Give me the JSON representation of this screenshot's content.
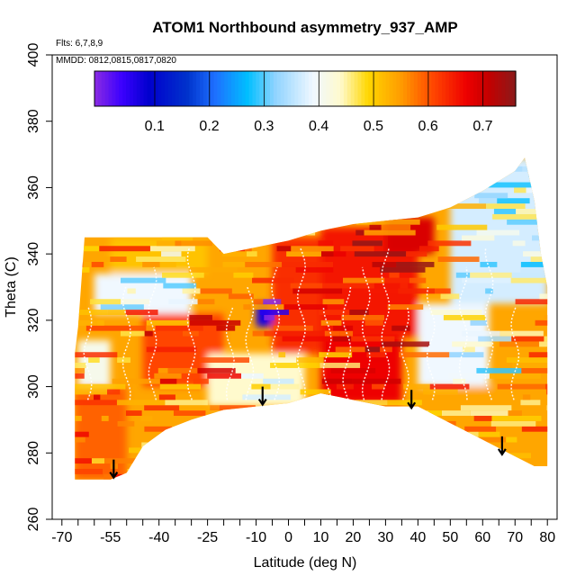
{
  "chart_data": {
    "type": "heatmap",
    "title": "ATOM1 Northbound asymmetry_937_AMP",
    "annotations": {
      "flights": "Flts: 6,7,8,9",
      "dates": "MMDD: 0812,0815,0817,0820"
    },
    "xlabel": "Latitude (deg N)",
    "ylabel": "Theta (C)",
    "xlim": [
      -70,
      80
    ],
    "ylim": [
      260,
      400
    ],
    "x_tick_labels": [
      "-70",
      "-55",
      "-40",
      "-25",
      "-10",
      "0",
      "10",
      "20",
      "30",
      "40",
      "50",
      "60",
      "70",
      "80"
    ],
    "x_tick_values": [
      -70,
      -55,
      -40,
      -25,
      -10,
      0,
      10,
      20,
      30,
      40,
      50,
      60,
      70,
      80
    ],
    "x_minor_ticks": [
      -65,
      -60,
      -50,
      -45,
      -35,
      -30,
      -20,
      -15,
      -5,
      5,
      15,
      25,
      35,
      45,
      55,
      65,
      75
    ],
    "y_tick_values": [
      260,
      280,
      300,
      320,
      340,
      360,
      380,
      400
    ],
    "y_tick_labels": [
      "260",
      "280",
      "300",
      "320",
      "340",
      "360",
      "380",
      "400"
    ],
    "colorbar": {
      "min": 0.0,
      "max": 0.77,
      "tick_values": [
        0.1,
        0.2,
        0.3,
        0.4,
        0.5,
        0.6,
        0.7
      ],
      "tick_labels": [
        "0.1",
        "0.2",
        "0.3",
        "0.4",
        "0.5",
        "0.6",
        "0.7"
      ],
      "dividers": [
        0.1,
        0.2,
        0.3,
        0.4,
        0.5,
        0.6,
        0.7
      ],
      "stops": [
        {
          "v": 0.0,
          "color": "#8a2be2"
        },
        {
          "v": 0.05,
          "color": "#3b00ff"
        },
        {
          "v": 0.1,
          "color": "#0000cd"
        },
        {
          "v": 0.17,
          "color": "#0033cc"
        },
        {
          "v": 0.22,
          "color": "#1e6fff"
        },
        {
          "v": 0.28,
          "color": "#00bfff"
        },
        {
          "v": 0.33,
          "color": "#8fd3ff"
        },
        {
          "v": 0.4,
          "color": "#f0f8ff"
        },
        {
          "v": 0.45,
          "color": "#fffacd"
        },
        {
          "v": 0.5,
          "color": "#ffd700"
        },
        {
          "v": 0.56,
          "color": "#ff9c00"
        },
        {
          "v": 0.62,
          "color": "#ff4500"
        },
        {
          "v": 0.68,
          "color": "#ee0000"
        },
        {
          "v": 0.72,
          "color": "#c40000"
        },
        {
          "v": 0.77,
          "color": "#8b1a1a"
        }
      ]
    },
    "field": {
      "lat_range": [
        -66,
        80
      ],
      "lower_boundary": [
        [
          -66,
          272
        ],
        [
          -55,
          272
        ],
        [
          -50,
          274
        ],
        [
          -45,
          282
        ],
        [
          -38,
          287
        ],
        [
          -30,
          290
        ],
        [
          -20,
          293
        ],
        [
          -10,
          294
        ],
        [
          0,
          295
        ],
        [
          10,
          298
        ],
        [
          20,
          296
        ],
        [
          30,
          294
        ],
        [
          40,
          294
        ],
        [
          50,
          289
        ],
        [
          60,
          284
        ],
        [
          70,
          279
        ],
        [
          76,
          276
        ],
        [
          80,
          276
        ]
      ],
      "upper_boundary": [
        [
          -66,
          310
        ],
        [
          -65,
          318
        ],
        [
          -63,
          345
        ],
        [
          -40,
          345
        ],
        [
          -25,
          345
        ],
        [
          -20,
          340
        ],
        [
          -10,
          342
        ],
        [
          0,
          344
        ],
        [
          10,
          347
        ],
        [
          20,
          349
        ],
        [
          30,
          350
        ],
        [
          40,
          351
        ],
        [
          50,
          354
        ],
        [
          60,
          359
        ],
        [
          70,
          365
        ],
        [
          73,
          369
        ],
        [
          76,
          356
        ],
        [
          78,
          340
        ],
        [
          80,
          330
        ]
      ],
      "regions": [
        {
          "lat": [
            -66,
            -50
          ],
          "theta": [
            272,
            300
          ],
          "value": 0.6
        },
        {
          "lat": [
            -65,
            -55
          ],
          "theta": [
            300,
            314
          ],
          "value": 0.42
        },
        {
          "lat": [
            -60,
            -30
          ],
          "theta": [
            322,
            334
          ],
          "value": 0.4
        },
        {
          "lat": [
            -55,
            -25
          ],
          "theta": [
            334,
            345
          ],
          "value": 0.52
        },
        {
          "lat": [
            -45,
            -20
          ],
          "theta": [
            300,
            322
          ],
          "value": 0.62
        },
        {
          "lat": [
            -25,
            5
          ],
          "theta": [
            294,
            310
          ],
          "value": 0.45
        },
        {
          "lat": [
            -10,
            -2
          ],
          "theta": [
            318,
            325
          ],
          "value": 0.08
        },
        {
          "lat": [
            -5,
            10
          ],
          "theta": [
            310,
            345
          ],
          "value": 0.64
        },
        {
          "lat": [
            10,
            35
          ],
          "theta": [
            295,
            315
          ],
          "value": 0.68
        },
        {
          "lat": [
            10,
            40
          ],
          "theta": [
            315,
            348
          ],
          "value": 0.66
        },
        {
          "lat": [
            30,
            45
          ],
          "theta": [
            340,
            351
          ],
          "value": 0.7
        },
        {
          "lat": [
            45,
            60
          ],
          "theta": [
            285,
            300
          ],
          "value": 0.55
        },
        {
          "lat": [
            40,
            62
          ],
          "theta": [
            300,
            325
          ],
          "value": 0.4
        },
        {
          "lat": [
            50,
            80
          ],
          "theta": [
            325,
            369
          ],
          "value": 0.38
        },
        {
          "lat": [
            60,
            80
          ],
          "theta": [
            276,
            300
          ],
          "value": 0.55
        }
      ]
    },
    "markers": [
      {
        "type": "down-arrow",
        "lat": -54,
        "theta": 278,
        "label": ""
      },
      {
        "type": "down-arrow",
        "lat": -8,
        "theta": 300,
        "label": ""
      },
      {
        "type": "down-arrow",
        "lat": 38,
        "theta": 299,
        "label": ""
      },
      {
        "type": "down-arrow",
        "lat": 66,
        "theta": 285,
        "label": ""
      }
    ]
  }
}
